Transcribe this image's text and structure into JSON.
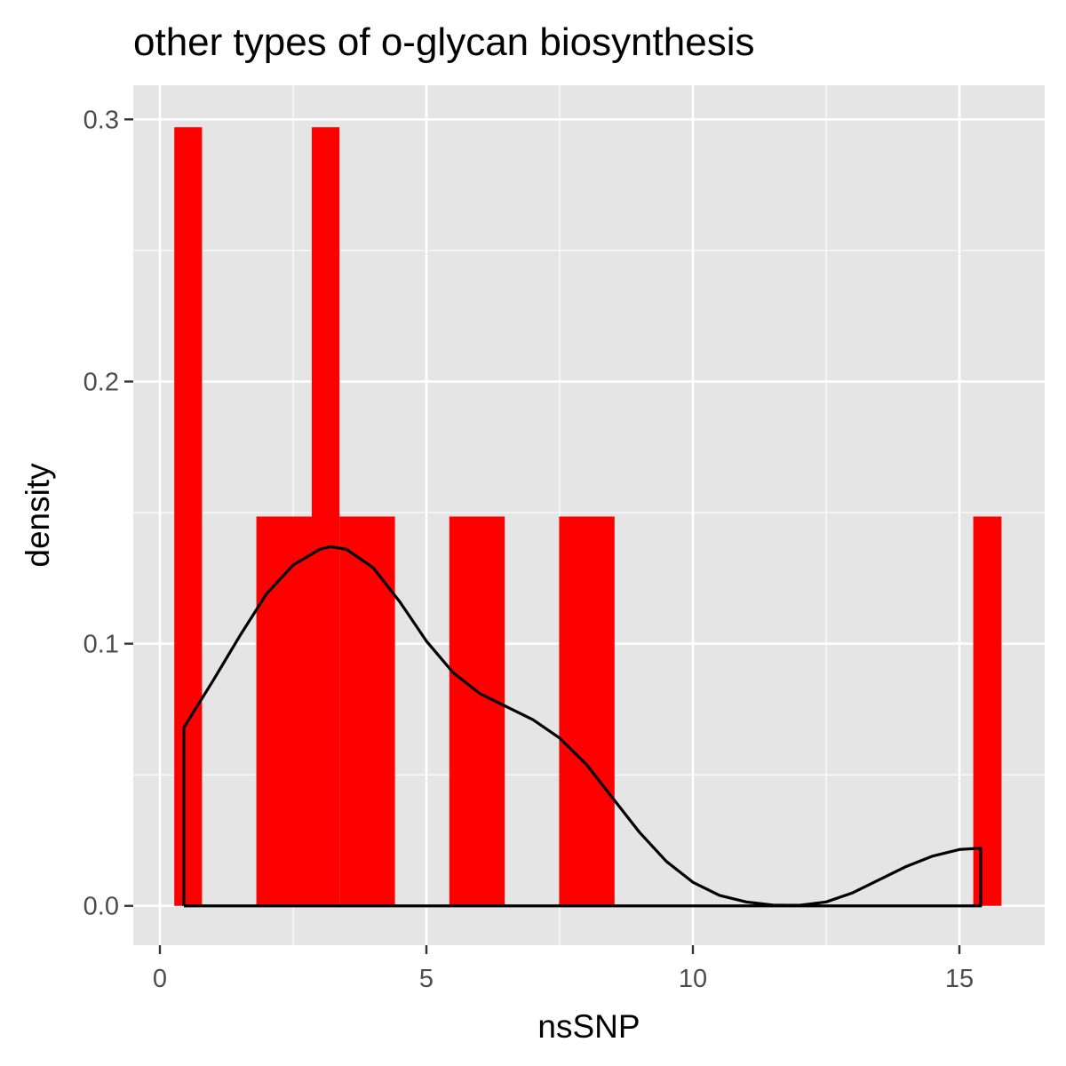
{
  "chart_data": {
    "type": "bar",
    "title": "other types of o-glycan biosynthesis",
    "xlabel": "nsSNP",
    "ylabel": "density",
    "xlim": [
      -0.5,
      16.6
    ],
    "ylim": [
      -0.015,
      0.313
    ],
    "x_ticks": [
      {
        "value": 0,
        "label": "0"
      },
      {
        "value": 5,
        "label": "5"
      },
      {
        "value": 10,
        "label": "10"
      },
      {
        "value": 15,
        "label": "15"
      }
    ],
    "y_ticks": [
      {
        "value": 0.0,
        "label": "0.0"
      },
      {
        "value": 0.1,
        "label": "0.1"
      },
      {
        "value": 0.2,
        "label": "0.2"
      },
      {
        "value": 0.3,
        "label": "0.3"
      }
    ],
    "x_minor": [
      2.5,
      7.5,
      12.5
    ],
    "y_minor": [
      0.05,
      0.15,
      0.25
    ],
    "grid": true,
    "histogram": {
      "fill": "#ff0000",
      "bins": [
        {
          "x0": 0.27,
          "x1": 0.79,
          "density": 0.297
        },
        {
          "x0": 1.81,
          "x1": 2.85,
          "density": 0.1485
        },
        {
          "x0": 2.85,
          "x1": 3.37,
          "density": 0.297
        },
        {
          "x0": 3.37,
          "x1": 4.41,
          "density": 0.1485
        },
        {
          "x0": 5.43,
          "x1": 6.47,
          "density": 0.1485
        },
        {
          "x0": 7.49,
          "x1": 8.53,
          "density": 0.1485
        },
        {
          "x0": 15.26,
          "x1": 15.79,
          "density": 0.1485
        }
      ]
    },
    "density_curve": {
      "stroke": "#000000",
      "points": [
        [
          0.45,
          0.0
        ],
        [
          0.45,
          0.068
        ],
        [
          1.0,
          0.086
        ],
        [
          1.5,
          0.103
        ],
        [
          2.0,
          0.119
        ],
        [
          2.5,
          0.13
        ],
        [
          3.0,
          0.136
        ],
        [
          3.2,
          0.137
        ],
        [
          3.5,
          0.136
        ],
        [
          4.0,
          0.129
        ],
        [
          4.5,
          0.116
        ],
        [
          5.0,
          0.101
        ],
        [
          5.5,
          0.089
        ],
        [
          6.0,
          0.081
        ],
        [
          6.5,
          0.076
        ],
        [
          7.0,
          0.071
        ],
        [
          7.5,
          0.064
        ],
        [
          8.0,
          0.054
        ],
        [
          8.5,
          0.041
        ],
        [
          9.0,
          0.028
        ],
        [
          9.5,
          0.017
        ],
        [
          10.0,
          0.009
        ],
        [
          10.5,
          0.004
        ],
        [
          11.0,
          0.0015
        ],
        [
          11.5,
          0.0003
        ],
        [
          12.0,
          0.0002
        ],
        [
          12.5,
          0.0015
        ],
        [
          13.0,
          0.005
        ],
        [
          13.5,
          0.01
        ],
        [
          14.0,
          0.015
        ],
        [
          14.5,
          0.019
        ],
        [
          15.0,
          0.0215
        ],
        [
          15.4,
          0.022
        ],
        [
          15.4,
          0.0
        ],
        [
          0.45,
          0.0
        ]
      ]
    }
  }
}
